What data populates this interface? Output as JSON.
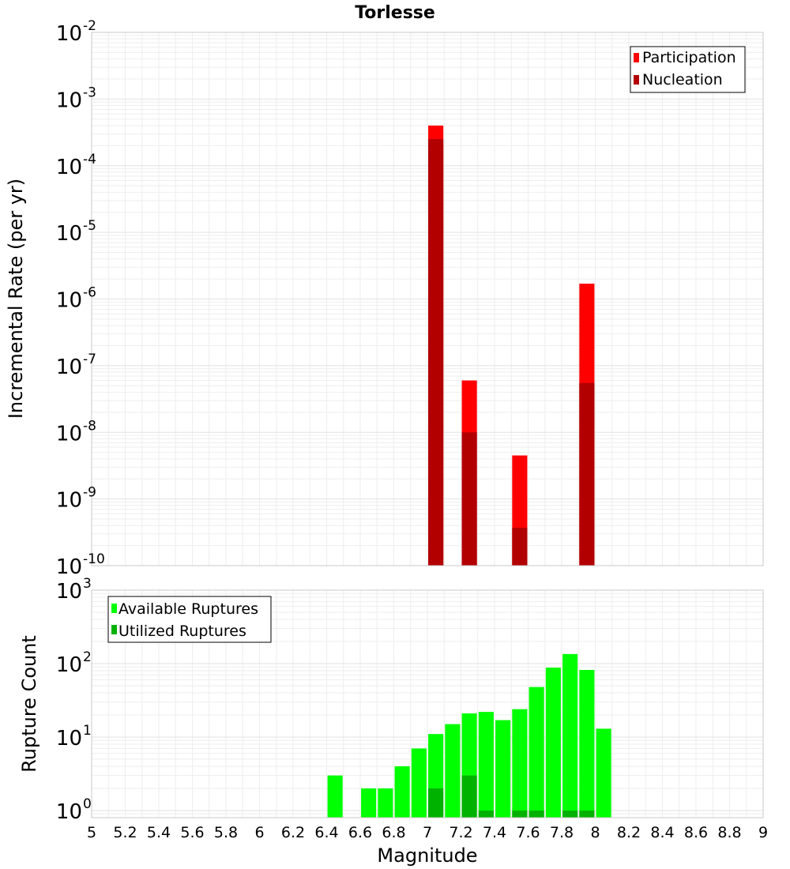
{
  "title": "Torlesse",
  "xlabel": "Magnitude",
  "x_ticks": [
    "5",
    "5.2",
    "5.4",
    "5.6",
    "5.8",
    "6",
    "6.2",
    "6.4",
    "6.6",
    "6.8",
    "7",
    "7.2",
    "7.4",
    "7.6",
    "7.8",
    "8",
    "8.2",
    "8.4",
    "8.6",
    "8.8",
    "9"
  ],
  "chart_data": [
    {
      "type": "bar",
      "panel": "top",
      "ylabel": "Incremental Rate (per yr)",
      "xlim": [
        5,
        9
      ],
      "ylim": [
        1e-10,
        0.01
      ],
      "yscale": "log",
      "y_ticks": [
        {
          "base": "10",
          "exp": "-10"
        },
        {
          "base": "10",
          "exp": "-9"
        },
        {
          "base": "10",
          "exp": "-8"
        },
        {
          "base": "10",
          "exp": "-7"
        },
        {
          "base": "10",
          "exp": "-6"
        },
        {
          "base": "10",
          "exp": "-5"
        },
        {
          "base": "10",
          "exp": "-4"
        },
        {
          "base": "10",
          "exp": "-3"
        },
        {
          "base": "10",
          "exp": "-2"
        }
      ],
      "grid": true,
      "legend_position": "top-right",
      "bar_width": 0.09,
      "series": [
        {
          "name": "Participation",
          "color": "#ff0000",
          "x": [
            7.05,
            7.25,
            7.55,
            7.95
          ],
          "values": [
            0.0004,
            6e-08,
            4.5e-09,
            1.7e-06
          ]
        },
        {
          "name": "Nucleation",
          "color": "#b20000",
          "x": [
            7.05,
            7.25,
            7.55,
            7.95
          ],
          "values": [
            0.00025,
            1e-08,
            3.7e-10,
            5.5e-08
          ]
        }
      ]
    },
    {
      "type": "bar",
      "panel": "bottom",
      "ylabel": "Rupture Count",
      "xlim": [
        5,
        9
      ],
      "ylim": [
        0.8,
        1000
      ],
      "yscale": "log",
      "y_ticks": [
        {
          "base": "10",
          "exp": "0"
        },
        {
          "base": "10",
          "exp": "1"
        },
        {
          "base": "10",
          "exp": "2"
        },
        {
          "base": "10",
          "exp": "3"
        }
      ],
      "grid": true,
      "legend_position": "top-left",
      "bar_width": 0.09,
      "series": [
        {
          "name": "Available Ruptures",
          "color": "#00ff00",
          "x": [
            6.45,
            6.65,
            6.75,
            6.85,
            6.95,
            7.05,
            7.15,
            7.25,
            7.35,
            7.45,
            7.55,
            7.65,
            7.75,
            7.85,
            7.95,
            8.05
          ],
          "values": [
            3,
            2,
            2,
            4,
            7,
            11,
            15,
            21,
            22,
            17,
            24,
            48,
            88,
            135,
            82,
            13
          ]
        },
        {
          "name": "Utilized Ruptures",
          "color": "#00b200",
          "x": [
            7.05,
            7.25,
            7.35,
            7.55,
            7.65,
            7.85,
            7.95
          ],
          "values": [
            2,
            3,
            1,
            1,
            1,
            1,
            1
          ]
        }
      ]
    }
  ]
}
